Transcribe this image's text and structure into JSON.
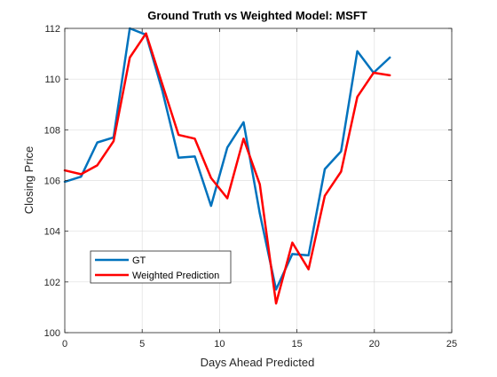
{
  "chart_data": {
    "type": "line",
    "title": "Ground Truth vs Weighted Model: MSFT",
    "xlabel": "Days Ahead Predicted",
    "ylabel": "Closing Price",
    "xlim": [
      0,
      25
    ],
    "ylim": [
      100,
      112
    ],
    "xticks": [
      0,
      5,
      10,
      15,
      20,
      25
    ],
    "yticks": [
      100,
      102,
      104,
      106,
      108,
      110,
      112
    ],
    "grid": true,
    "legend_position": "bottom-left",
    "series": [
      {
        "name": "GT",
        "color": "#0072BD",
        "x": [
          0,
          1.05,
          2.1,
          3.15,
          4.2,
          5.25,
          6.3,
          7.35,
          8.4,
          9.45,
          10.5,
          11.55,
          12.6,
          13.65,
          14.7,
          15.75,
          16.8,
          17.85,
          18.9,
          19.95,
          21
        ],
        "y": [
          105.95,
          106.15,
          107.5,
          107.7,
          112.0,
          111.75,
          109.55,
          106.9,
          106.95,
          105.0,
          107.3,
          108.3,
          104.7,
          101.7,
          103.1,
          103.05,
          106.45,
          107.15,
          111.1,
          110.25,
          110.85
        ]
      },
      {
        "name": "Weighted Prediction",
        "color": "#FF0000",
        "x": [
          0,
          1.05,
          2.1,
          3.15,
          4.2,
          5.25,
          6.3,
          7.35,
          8.4,
          9.45,
          10.5,
          11.55,
          12.6,
          13.65,
          14.7,
          15.75,
          16.8,
          17.85,
          18.9,
          19.95,
          21
        ],
        "y": [
          106.4,
          106.25,
          106.6,
          107.55,
          110.85,
          111.8,
          109.8,
          107.8,
          107.65,
          106.1,
          105.3,
          107.65,
          105.85,
          101.15,
          103.55,
          102.5,
          105.4,
          106.35,
          109.3,
          110.25,
          110.15
        ]
      }
    ]
  }
}
